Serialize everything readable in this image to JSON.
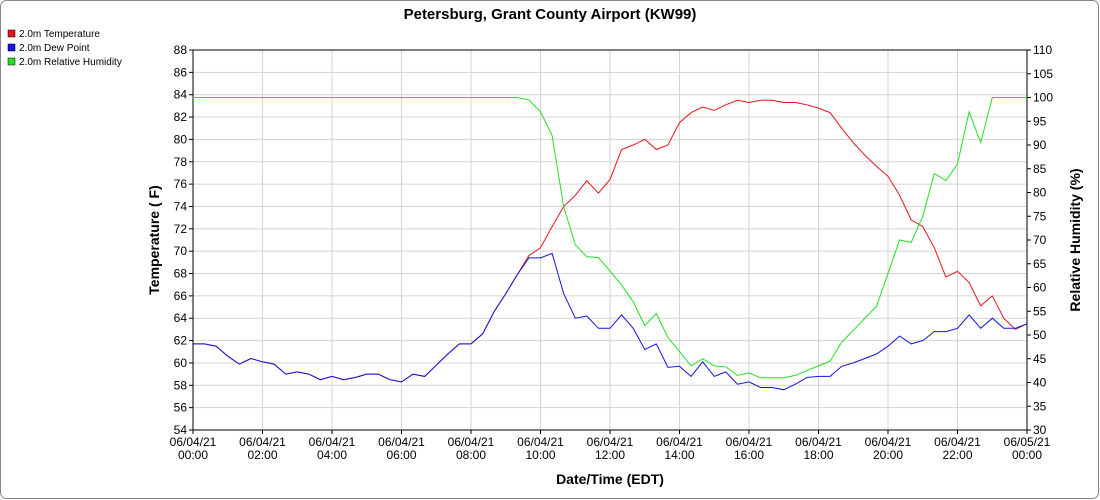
{
  "chart_data": {
    "type": "line",
    "title": "Petersburg, Grant County Airport (KW99)",
    "xlabel": "Date/Time (EDT)",
    "ylabel": "Temperature ( F)",
    "y2label": "Relative Humidity (%)",
    "legend": "top-left",
    "grid": true,
    "x": [
      0,
      20,
      40,
      60,
      80,
      100,
      120,
      140,
      160,
      180,
      200,
      220,
      240,
      260,
      280,
      300,
      320,
      340,
      360,
      380,
      400,
      420,
      440,
      460,
      480,
      500,
      520,
      540,
      560,
      580,
      600,
      620,
      640,
      660,
      680,
      700,
      720,
      740,
      760,
      780,
      800,
      820,
      840,
      860,
      880,
      900,
      920,
      940,
      960,
      980,
      1000,
      1020,
      1040,
      1060,
      1080,
      1100,
      1120,
      1140,
      1160,
      1180,
      1200,
      1220,
      1240,
      1260,
      1280,
      1300,
      1320,
      1340,
      1360,
      1380,
      1400,
      1420,
      1440
    ],
    "xlim": [
      0,
      1440
    ],
    "xticks": [
      {
        "value": 0,
        "label": "06/04/21 00:00"
      },
      {
        "value": 120,
        "label": "06/04/21 02:00"
      },
      {
        "value": 240,
        "label": "06/04/21 04:00"
      },
      {
        "value": 360,
        "label": "06/04/21 06:00"
      },
      {
        "value": 480,
        "label": "06/04/21 08:00"
      },
      {
        "value": 600,
        "label": "06/04/21 10:00"
      },
      {
        "value": 720,
        "label": "06/04/21 12:00"
      },
      {
        "value": 840,
        "label": "06/04/21 14:00"
      },
      {
        "value": 960,
        "label": "06/04/21 16:00"
      },
      {
        "value": 1080,
        "label": "06/04/21 18:00"
      },
      {
        "value": 1200,
        "label": "06/04/21 20:00"
      },
      {
        "value": 1320,
        "label": "06/04/21 22:00"
      },
      {
        "value": 1440,
        "label": "06/05/21 00:00"
      }
    ],
    "ylim": [
      54,
      88
    ],
    "yticks": [
      54,
      56,
      58,
      60,
      62,
      64,
      66,
      68,
      70,
      72,
      74,
      76,
      78,
      80,
      82,
      84,
      86,
      88
    ],
    "y2lim": [
      30,
      110
    ],
    "y2ticks": [
      30,
      35,
      40,
      45,
      50,
      55,
      60,
      65,
      70,
      75,
      80,
      85,
      90,
      95,
      100,
      105,
      110
    ],
    "series": [
      {
        "name": "2.0m Temperature",
        "color": "#e8141c",
        "values": [
          61.7,
          61.7,
          61.5,
          60.6,
          59.9,
          60.4,
          60.1,
          59.9,
          59.0,
          59.2,
          59.0,
          58.5,
          58.8,
          58.5,
          58.7,
          59.0,
          59.0,
          58.5,
          58.3,
          59.0,
          58.8,
          59.8,
          60.8,
          61.7,
          61.7,
          62.6,
          64.6,
          66.2,
          67.9,
          69.6,
          70.3,
          72.2,
          74.0,
          75.0,
          76.3,
          75.2,
          76.4,
          79.1,
          79.5,
          80.0,
          79.1,
          79.5,
          81.5,
          82.4,
          82.9,
          82.6,
          83.1,
          83.5,
          83.3,
          83.5,
          83.5,
          83.3,
          83.3,
          83.1,
          82.8,
          82.4,
          81.0,
          79.7,
          78.6,
          77.6,
          76.7,
          75.0,
          72.8,
          72.2,
          70.3,
          67.7,
          68.2,
          67.2,
          65.1,
          66.0,
          64.0,
          63.0,
          63.5
        ]
      },
      {
        "name": "2.0m Dew Point",
        "color": "#1414e0",
        "values": [
          61.7,
          61.7,
          61.5,
          60.6,
          59.9,
          60.4,
          60.1,
          59.9,
          59.0,
          59.2,
          59.0,
          58.5,
          58.8,
          58.5,
          58.7,
          59.0,
          59.0,
          58.5,
          58.3,
          59.0,
          58.8,
          59.8,
          60.8,
          61.7,
          61.7,
          62.6,
          64.6,
          66.2,
          67.9,
          69.4,
          69.4,
          69.8,
          66.2,
          64.0,
          64.2,
          63.1,
          63.1,
          64.3,
          63.1,
          61.2,
          61.7,
          59.6,
          59.7,
          58.8,
          60.1,
          58.8,
          59.2,
          58.1,
          58.3,
          57.8,
          57.8,
          57.6,
          58.1,
          58.7,
          58.8,
          58.8,
          59.7,
          60.0,
          60.4,
          60.8,
          61.5,
          62.4,
          61.7,
          62.0,
          62.8,
          62.8,
          63.1,
          64.3,
          63.1,
          64.0,
          63.1,
          63.1,
          63.5
        ]
      },
      {
        "name": "2.0m Relative Humidity",
        "color": "#22e022",
        "axis": "y2",
        "values": [
          100,
          100,
          100,
          100,
          100,
          100,
          100,
          100,
          100,
          100,
          100,
          100,
          100,
          100,
          100,
          100,
          100,
          100,
          100,
          100,
          100,
          100,
          100,
          100,
          100,
          100,
          100,
          100,
          100,
          99.5,
          97,
          92,
          77,
          69,
          66.5,
          66.3,
          63.5,
          60.5,
          57,
          52,
          54.5,
          49.5,
          46.5,
          43.5,
          45,
          43.5,
          43.3,
          41.5,
          42,
          41,
          41,
          41,
          41.5,
          42.5,
          43.5,
          44.5,
          48.5,
          51,
          53.5,
          56,
          63,
          70,
          69.5,
          75,
          84,
          82.5,
          86,
          97,
          90.5,
          100,
          100,
          100,
          100
        ]
      }
    ]
  }
}
